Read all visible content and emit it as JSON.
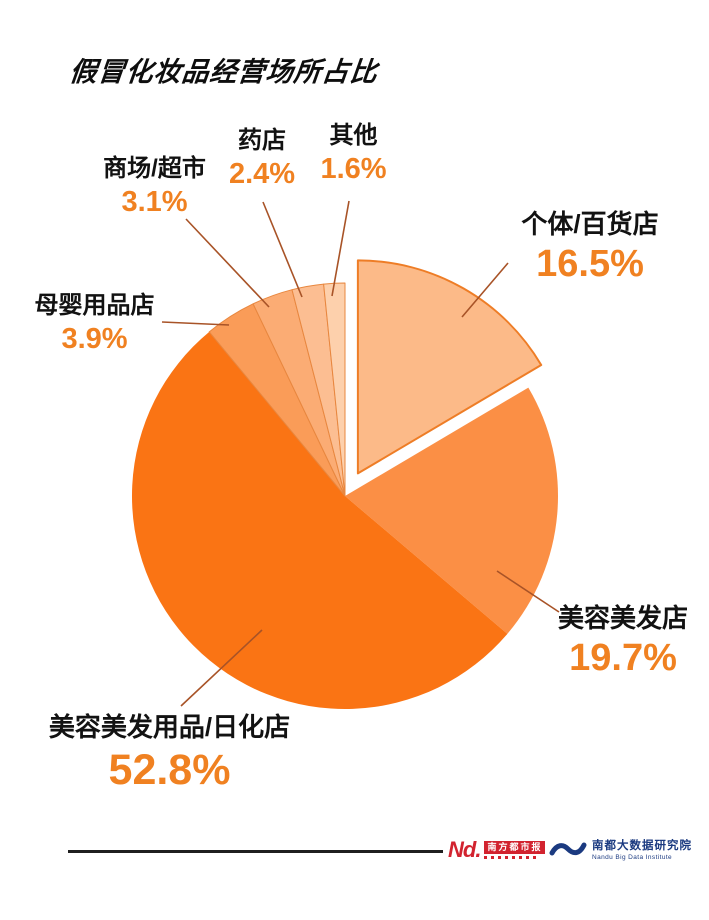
{
  "page": {
    "background": "#FFFFFF"
  },
  "title": "假冒化妆品经营场所占比",
  "chart_data": {
    "type": "pie",
    "title": "假冒化妆品经营场所占比",
    "direction": "clockwise",
    "start_angle": "12 o'clock",
    "legend": "none (direct labels with leader lines)",
    "label_text_color": "#121212",
    "accent_text_color": "#F08121",
    "leader_line_color": "#A85327",
    "slices": [
      {
        "label": "个体/百货店",
        "value": 16.5,
        "pct": "16.5%",
        "color": "#FCBA88",
        "stroke": "#EE7D26",
        "exploded": true
      },
      {
        "label": "美容美发店",
        "value": 19.7,
        "pct": "19.7%",
        "color": "#FB8F45",
        "stroke": "none"
      },
      {
        "label": "美容美发用品/日化店",
        "value": 52.8,
        "pct": "52.8%",
        "color": "#FA7414",
        "stroke": "none"
      },
      {
        "label": "母婴用品店",
        "value": 3.9,
        "pct": "3.9%",
        "color": "#FA9C58",
        "stroke": "#E8873F"
      },
      {
        "label": "商场/超市",
        "value": 3.1,
        "pct": "3.1%",
        "color": "#FBAC74",
        "stroke": "#E8873F"
      },
      {
        "label": "药店",
        "value": 2.4,
        "pct": "2.4%",
        "color": "#FCBE92",
        "stroke": "#E8873F"
      },
      {
        "label": "其他",
        "value": 1.6,
        "pct": "1.6%",
        "color": "#FDD0AC",
        "stroke": "#E8873F"
      }
    ]
  },
  "footer": {
    "nd_logo": {
      "nd_text": "Nd.",
      "box_text": "南方都市报",
      "color": "#D2232F"
    },
    "institute_logo": {
      "name_cn": "南都大数据研究院",
      "name_en": "Nandu Big Data Institute",
      "color": "#1B3A80"
    }
  }
}
